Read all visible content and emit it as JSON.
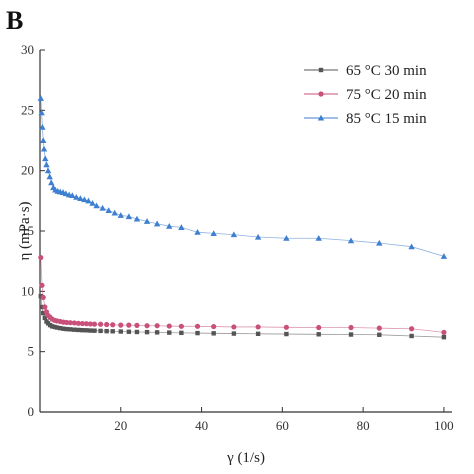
{
  "panel_label": "B",
  "chart_data": {
    "type": "line",
    "xlabel": "γ (1/s)",
    "ylabel": "η (mPa·s)",
    "xlim": [
      0,
      102
    ],
    "ylim": [
      0,
      30
    ],
    "xticks": [
      20,
      40,
      60,
      80,
      100
    ],
    "yticks": [
      0,
      5,
      10,
      15,
      20,
      25,
      30
    ],
    "grid": false,
    "legend_position": "top-right",
    "series": [
      {
        "name": "65 °C 30 min",
        "color": "#555555",
        "marker": "square",
        "x": [
          0.2,
          0.5,
          0.8,
          1.2,
          1.6,
          2.0,
          2.5,
          3.0,
          3.6,
          4.2,
          5.0,
          5.8,
          6.6,
          7.5,
          8.5,
          9.5,
          10.5,
          11.5,
          12.5,
          13.5,
          15,
          16.5,
          18,
          20,
          22,
          24,
          26.5,
          29,
          32,
          35,
          39,
          43,
          48,
          54,
          61,
          69,
          77,
          84,
          92,
          100
        ],
        "y": [
          9.6,
          8.7,
          8.2,
          7.8,
          7.5,
          7.35,
          7.2,
          7.1,
          7.05,
          7.0,
          6.95,
          6.9,
          6.87,
          6.85,
          6.82,
          6.8,
          6.78,
          6.77,
          6.75,
          6.74,
          6.72,
          6.7,
          6.69,
          6.67,
          6.65,
          6.63,
          6.62,
          6.6,
          6.58,
          6.56,
          6.54,
          6.52,
          6.5,
          6.48,
          6.46,
          6.44,
          6.42,
          6.4,
          6.3,
          6.2
        ]
      },
      {
        "name": "75 °C 20 min",
        "color": "#c8507a",
        "marker": "circle",
        "x": [
          0.2,
          0.5,
          0.8,
          1.2,
          1.6,
          2.0,
          2.5,
          3.0,
          3.6,
          4.2,
          5.0,
          5.8,
          6.6,
          7.5,
          8.5,
          9.5,
          10.5,
          11.5,
          12.5,
          13.5,
          15,
          16.5,
          18,
          20,
          22,
          24,
          26.5,
          29,
          32,
          35,
          39,
          43,
          48,
          54,
          61,
          69,
          77,
          84,
          92,
          100
        ],
        "y": [
          12.8,
          10.5,
          9.5,
          8.7,
          8.3,
          8.0,
          7.85,
          7.7,
          7.6,
          7.55,
          7.5,
          7.45,
          7.42,
          7.4,
          7.38,
          7.35,
          7.33,
          7.32,
          7.3,
          7.28,
          7.27,
          7.25,
          7.23,
          7.2,
          7.2,
          7.18,
          7.15,
          7.15,
          7.12,
          7.1,
          7.1,
          7.08,
          7.05,
          7.05,
          7.02,
          7.0,
          7.0,
          6.95,
          6.9,
          6.6
        ]
      },
      {
        "name": "85 °C 15 min",
        "color": "#3f7fcf",
        "marker": "triangle",
        "x": [
          0.2,
          0.4,
          0.6,
          0.8,
          1.0,
          1.3,
          1.6,
          2.0,
          2.4,
          2.8,
          3.3,
          3.8,
          4.4,
          5.0,
          5.7,
          6.4,
          7.2,
          8.0,
          9.0,
          10.0,
          11.0,
          12.0,
          13.0,
          14.0,
          15.5,
          17,
          18.5,
          20,
          22,
          24,
          26.5,
          29,
          32,
          35,
          39,
          43,
          48,
          54,
          61,
          69,
          77,
          84,
          92,
          100
        ],
        "y": [
          26.0,
          24.8,
          23.6,
          22.5,
          21.8,
          21.0,
          20.5,
          20.0,
          19.5,
          19.0,
          18.6,
          18.4,
          18.3,
          18.25,
          18.2,
          18.1,
          18.0,
          17.95,
          17.8,
          17.7,
          17.6,
          17.5,
          17.3,
          17.1,
          16.9,
          16.7,
          16.5,
          16.3,
          16.2,
          16.0,
          15.8,
          15.6,
          15.4,
          15.3,
          14.9,
          14.8,
          14.7,
          14.5,
          14.4,
          14.4,
          14.2,
          14.0,
          13.7,
          12.9
        ]
      }
    ]
  }
}
